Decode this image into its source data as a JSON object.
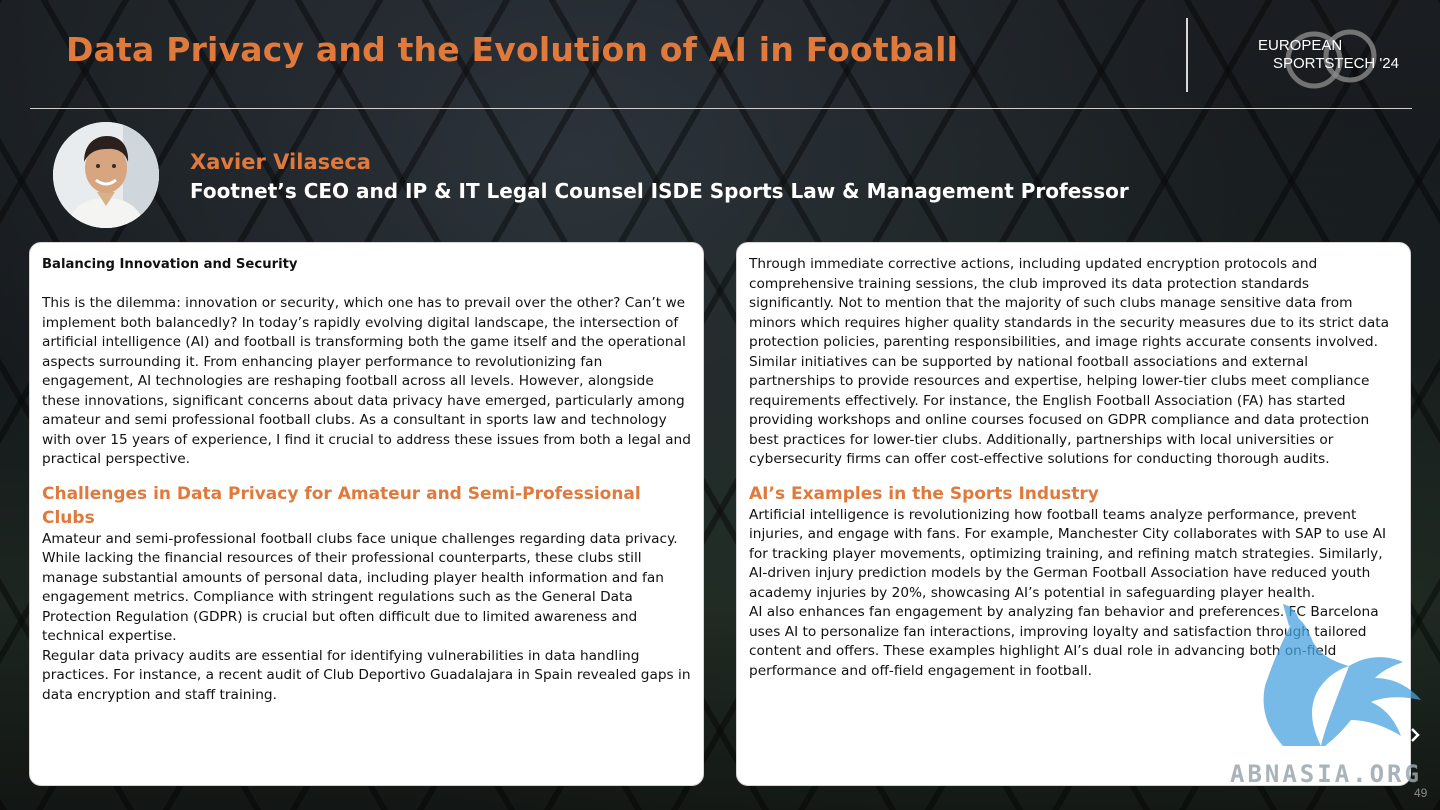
{
  "header": {
    "title": "Data Privacy and the Evolution of AI in Football",
    "logo_line1": "EUROPEAN",
    "logo_line2": "SPORTSTECH '24"
  },
  "speaker": {
    "name": "Xavier Vilaseca",
    "role": "Footnet’s CEO and IP & IT Legal Counsel ISDE Sports Law & Management Professor"
  },
  "left_card": {
    "heading": "Balancing Innovation and Security",
    "intro": "This is the dilemma: innovation or security, which one has to prevail over the other? Can’t we implement both balancedly? In today’s rapidly evolving digital landscape, the intersection of artificial intelligence (AI) and football is transforming both the game itself and the operational aspects surrounding it. From enhancing player performance to revolutionizing fan engagement, AI technologies are reshaping football across all levels. However, alongside these innovations, significant concerns about data privacy have emerged, particularly among amateur and semi professional football clubs. As a consultant in sports law and technology with over 15 years of experience, I find it crucial to address these issues from both a legal and practical perspective.",
    "section_title": "Challenges in Data Privacy for Amateur and Semi-Professional Clubs",
    "section_body": "Amateur and semi-professional football clubs face unique challenges regarding data privacy. While lacking the financial resources of their professional counterparts, these clubs still manage substantial amounts of personal data, including player health information and fan engagement metrics. Compliance with stringent regulations such as the General Data Protection Regulation (GDPR) is crucial but often difficult due to limited awareness and technical expertise.",
    "section_body2": "Regular data privacy audits are essential for identifying vulnerabilities in data handling practices. For instance, a recent audit of Club Deportivo Guadalajara in Spain revealed gaps in data encryption and staff training."
  },
  "right_card": {
    "para1": "Through immediate  corrective actions, including updated encryption protocols and comprehensive  training sessions, the club improved its data protection standards significantly. Not  to mention that the majority of such clubs manage sensitive data from minors which  requires higher quality standards in the security measures due to its strict data  protection policies, parenting responsibilities, and image rights accurate consents  involved.",
    "para2": "Similar initiatives can be supported by national football associations and external partnerships to provide resources and expertise, helping lower-tier clubs meet compliance requirements effectively. For instance, the English Football  Association (FA) has started providing workshops and online courses focused on  GDPR compliance and data protection best practices for lower-tier clubs. Additionally, partnerships with local universities or cybersecurity firms can offer  cost-effective solutions for conducting thorough audits.",
    "section_title": "AI’s Examples in the Sports Industry",
    "para3": "Artificial intelligence is revolutionizing how football teams analyze performance, prevent injuries, and engage with fans. For example, Manchester City collaborates with SAP to use AI for tracking player movements, optimizing training, and refining match strategies. Similarly, AI-driven injury prediction models by the German Football Association have reduced youth academy injuries by 20%, showcasing AI’s potential in safeguarding player health.",
    "para4": "AI also enhances fan engagement by analyzing fan behavior and preferences. FC Barcelona uses AI to personalize fan interactions, improving loyalty and satisfaction through tailored content and offers. These examples highlight AI’s dual role in advancing both on-field performance and off-field engagement in football."
  },
  "watermark": {
    "text": "ABNASIA.ORG"
  },
  "footer": {
    "page_number": "49"
  },
  "colors": {
    "accent": "#e07a3c",
    "card_bg": "#ffffff",
    "watermark": "#4aa3df"
  }
}
